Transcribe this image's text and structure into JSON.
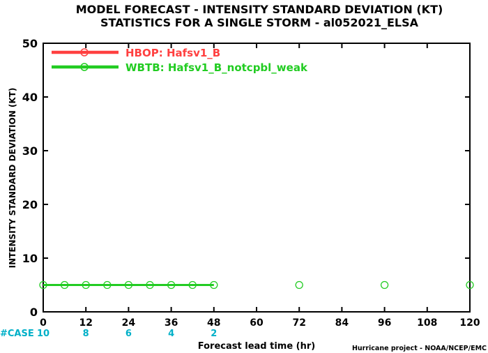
{
  "chart_data": {
    "type": "line",
    "title": "MODEL FORECAST - INTENSITY STANDARD DEVIATION (KT)",
    "subtitle": "STATISTICS FOR A SINGLE STORM - al052021_ELSA",
    "xlabel": "Forecast lead time (hr)",
    "ylabel": "INTENSITY STANDARD DEVIATION (KT)",
    "credit": "Hurricane project - NOAA/NCEP/EMC",
    "xlim": [
      0,
      120
    ],
    "ylim": [
      0,
      50
    ],
    "x_ticks": [
      0,
      12,
      24,
      36,
      48,
      60,
      72,
      84,
      96,
      108,
      120
    ],
    "y_ticks": [
      0,
      10,
      20,
      30,
      40,
      50
    ],
    "grid": false,
    "legend_position": "top-left",
    "case_label": "#CASE",
    "case_counts": [
      {
        "x": 0,
        "label": "10"
      },
      {
        "x": 12,
        "label": "8"
      },
      {
        "x": 24,
        "label": "6"
      },
      {
        "x": 36,
        "label": "4"
      },
      {
        "x": 48,
        "label": "2"
      }
    ],
    "series": [
      {
        "name": "HBOP: Hafsv1_B",
        "color": "#ff4040",
        "x": [],
        "y": []
      },
      {
        "name": "WBTB: Hafsv1_B_notcpbl_weak",
        "color": "#22cc22",
        "line_x": [
          0,
          6,
          12,
          18,
          24,
          30,
          36,
          42,
          48
        ],
        "line_y": [
          5,
          5,
          5,
          5,
          5,
          5,
          5,
          5,
          5
        ],
        "x": [
          0,
          6,
          12,
          18,
          24,
          30,
          36,
          42,
          48,
          72,
          96,
          120
        ],
        "y": [
          5,
          5,
          5,
          5,
          5,
          5,
          5,
          5,
          5,
          5,
          5,
          5
        ]
      }
    ],
    "case_color": "#00b0c8"
  }
}
